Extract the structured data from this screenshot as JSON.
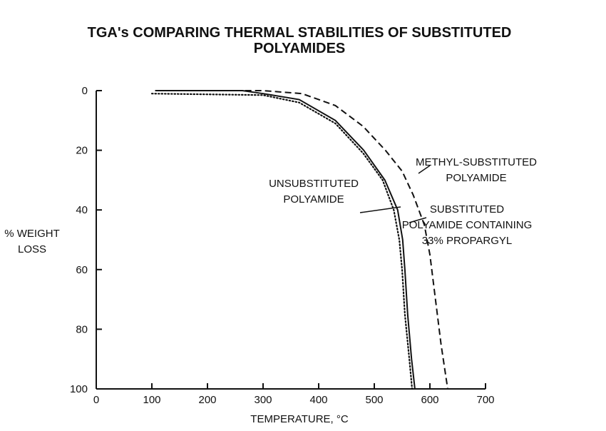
{
  "chart_data": {
    "type": "line",
    "title": "TGA's COMPARING THERMAL STABILITIES OF SUBSTITUTED\nPOLYAMIDES",
    "x_label": "TEMPERATURE, °C",
    "y_label": "% WEIGHT\nLOSS",
    "xlim": [
      0,
      700
    ],
    "xticks": [
      0,
      100,
      200,
      300,
      400,
      500,
      600,
      700
    ],
    "ylim": [
      0,
      100
    ],
    "yticks": [
      0,
      20,
      40,
      60,
      80,
      100
    ],
    "y_inverted": true,
    "series": [
      {
        "name": "SUBSTITUTED\nPOLYAMIDE CONTAINING\n33% PROPARGYL",
        "color": "#111111",
        "style": "solid",
        "x": [
          106,
          263,
          300,
          365,
          430,
          481,
          519,
          542,
          551,
          555,
          560,
          567,
          573
        ],
        "values": [
          0,
          0,
          1,
          3,
          10,
          20,
          30,
          40,
          50,
          60,
          75,
          90,
          100
        ]
      },
      {
        "name": "UNSUBSTITUTED\nPOLYAMIDE",
        "color": "#111111",
        "style": "dotted",
        "x": [
          100,
          300,
          365,
          430,
          480,
          515,
          535,
          545,
          550,
          555,
          563,
          568
        ],
        "values": [
          1,
          1.5,
          4,
          11,
          21,
          30,
          40,
          50,
          60,
          75,
          90,
          100
        ]
      },
      {
        "name": "METHYL-SUBSTITUTED\nPOLYAMIDE",
        "color": "#111111",
        "style": "dashed",
        "x": [
          106,
          300,
          370,
          430,
          480,
          520,
          550,
          570,
          590,
          600,
          610,
          620,
          632
        ],
        "values": [
          0,
          0,
          1,
          5,
          12,
          20,
          27,
          35,
          45,
          55,
          70,
          85,
          100
        ]
      }
    ]
  }
}
